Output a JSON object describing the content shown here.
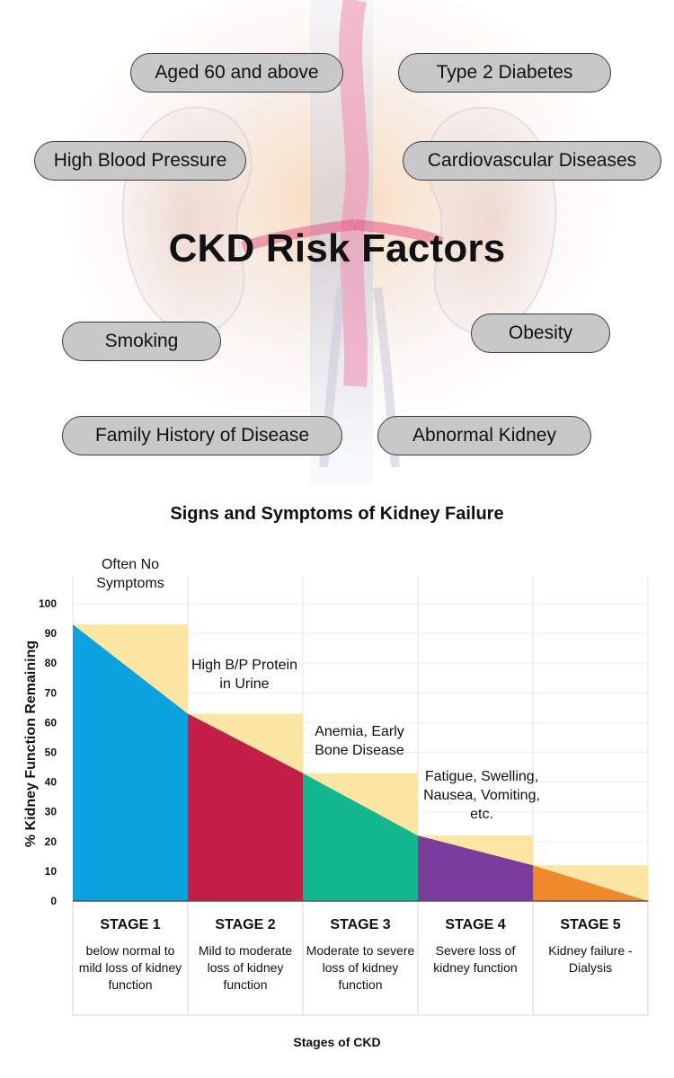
{
  "infographic": {
    "title": "CKD Risk Factors",
    "risk_factors": [
      "Aged 60 and above",
      "Type 2 Diabetes",
      "High Blood Pressure",
      "Cardiovascular Diseases",
      "Smoking",
      "Obesity",
      "Family History of Disease",
      "Abnormal Kidney"
    ]
  },
  "chart_data": {
    "type": "area",
    "title": "Signs and Symptoms of Kidney Failure",
    "xlabel": "Stages of CKD",
    "ylabel": "% Kidney Function Remaining",
    "ylim": [
      0,
      100
    ],
    "yticks": [
      0,
      10,
      20,
      30,
      40,
      50,
      60,
      70,
      80,
      90,
      100
    ],
    "grid": true,
    "stages": [
      {
        "name": "STAGE 1",
        "description": "below normal to mild loss of kidney function",
        "start": 93,
        "end": 63,
        "upper": 93,
        "symptom": "Often No Symptoms",
        "color": "#0aa3e0"
      },
      {
        "name": "STAGE 2",
        "description": "Mild to moderate loss of kidney function",
        "start": 63,
        "end": 43,
        "upper": 63,
        "symptom": "High B/P Protein in Urine",
        "color": "#c31e47"
      },
      {
        "name": "STAGE 3",
        "description": "Moderate to severe loss of kidney function",
        "start": 43,
        "end": 22,
        "upper": 43,
        "symptom": "Anemia, Early Bone Disease",
        "color": "#14b890"
      },
      {
        "name": "STAGE 4",
        "description": "Severe loss of kidney function",
        "start": 22,
        "end": 12,
        "upper": 22,
        "symptom": "Fatigue, Swelling, Nausea, Vomiting, etc.",
        "color": "#7a3d9c"
      },
      {
        "name": "STAGE 5",
        "description": "Kidney failure - Dialysis",
        "start": 12,
        "end": 0,
        "upper": 12,
        "symptom": "",
        "color": "#ee8a2c"
      }
    ],
    "upper_fill_color": "#fbe6a3"
  }
}
